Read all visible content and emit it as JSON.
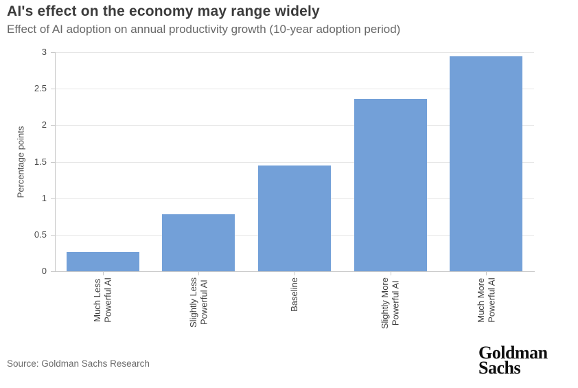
{
  "header": {
    "title": "AI's effect on the economy may range widely",
    "subtitle": "Effect of AI adoption on annual productivity growth (10-year adoption period)"
  },
  "chart_data": {
    "type": "bar",
    "title": "AI's effect on the economy may range widely",
    "subtitle": "Effect of AI adoption on annual productivity growth (10-year adoption period)",
    "categories": [
      "Much Less\nPowerful AI",
      "Slightly Less\nPowerful AI",
      "Baseline",
      "Slightly More\nPowerful AI",
      "Much More\nPowerful AI"
    ],
    "values": [
      0.26,
      0.78,
      1.45,
      2.36,
      2.94
    ],
    "xlabel": "",
    "ylabel": "Percentage points",
    "ylim": [
      0,
      3
    ],
    "ytick_values": [
      0,
      0.5,
      1,
      1.5,
      2,
      2.5,
      3
    ],
    "ytick_labels": [
      "0",
      "0.5",
      "1",
      "1.5",
      "2",
      "2.5",
      "3"
    ],
    "grid": true,
    "legend": false,
    "bar_color": "#73a0d8",
    "gridline_color": "#e6e6e6",
    "axis_color": "#c9c9c9"
  },
  "footer": {
    "source": "Source: Goldman Sachs Research",
    "logo_line1": "Goldman",
    "logo_line2": "Sachs"
  }
}
